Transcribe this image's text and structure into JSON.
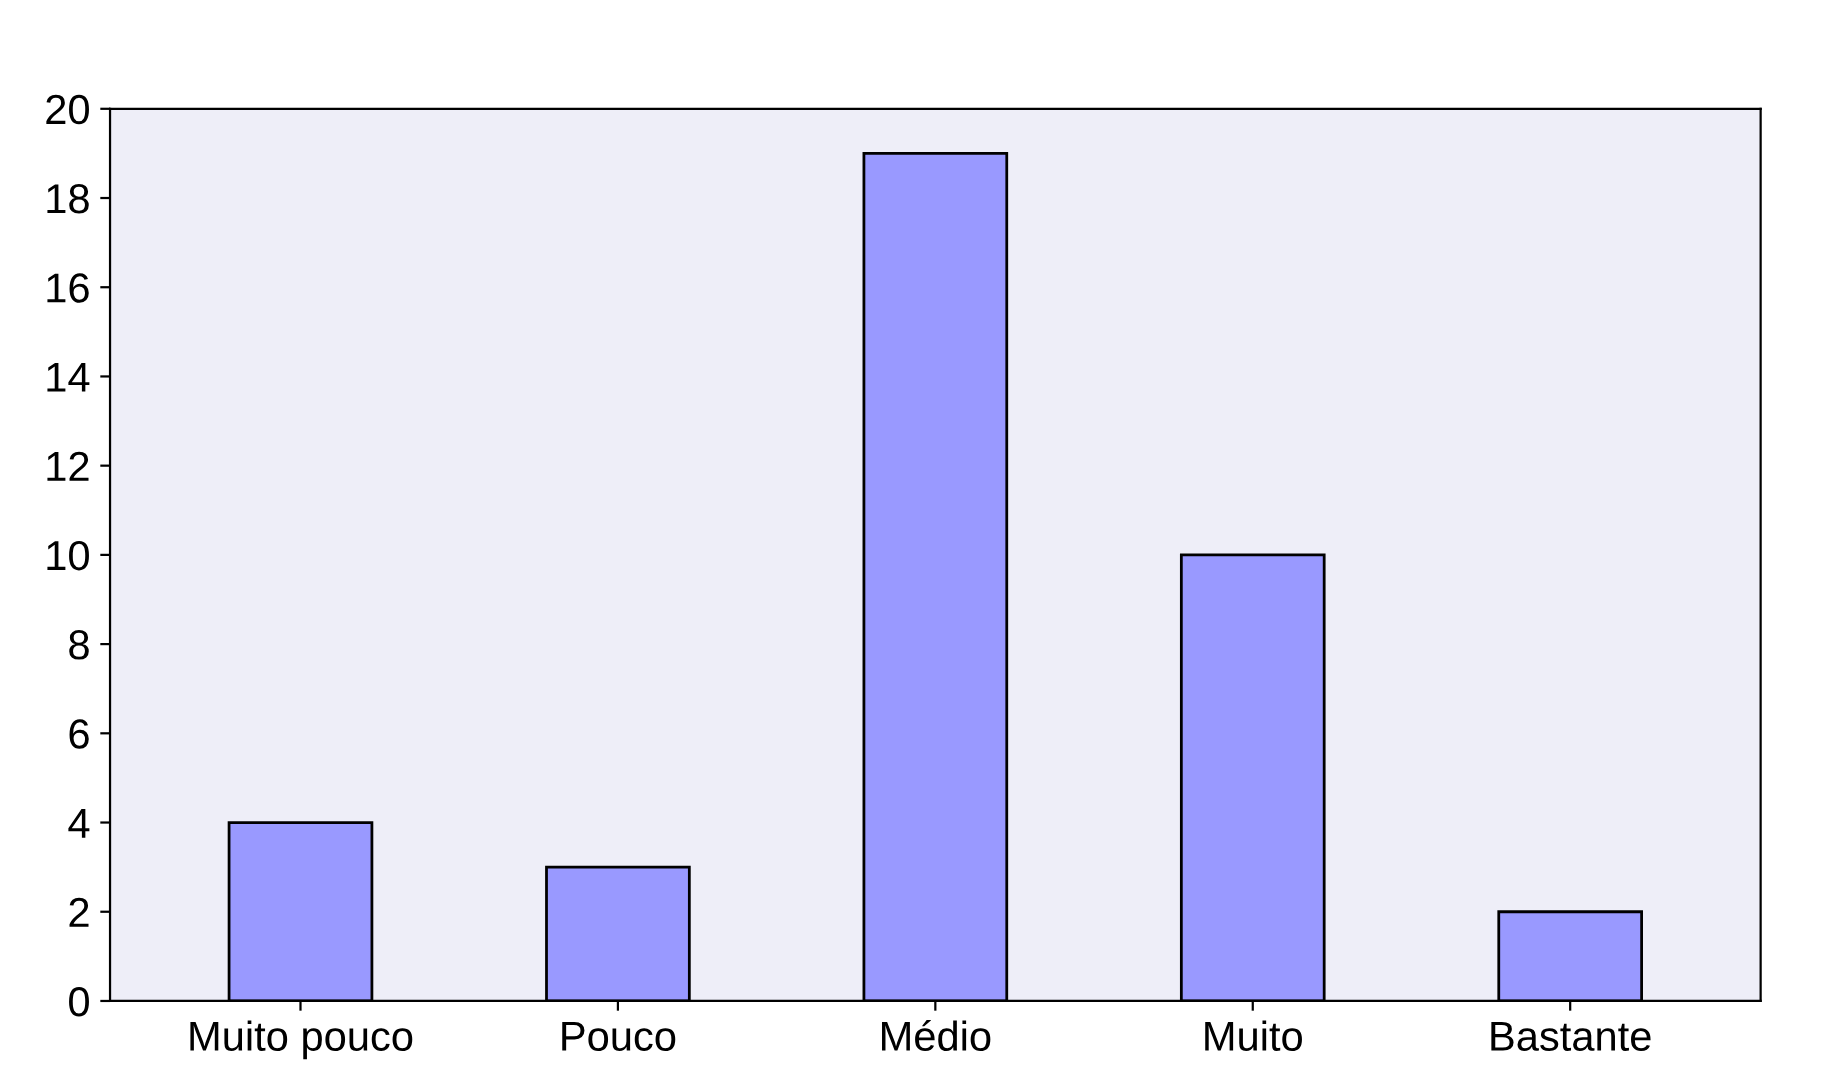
{
  "chart_data": {
    "type": "bar",
    "categories": [
      "Muito pouco",
      "Pouco",
      "Médio",
      "Muito",
      "Bastante"
    ],
    "values": [
      4,
      3,
      19,
      10,
      2
    ],
    "color": "#9999ff",
    "ylim": [
      0,
      20
    ],
    "yticks": [
      0,
      2,
      4,
      6,
      8,
      10,
      12,
      14,
      16,
      18,
      20
    ],
    "grid": false
  }
}
